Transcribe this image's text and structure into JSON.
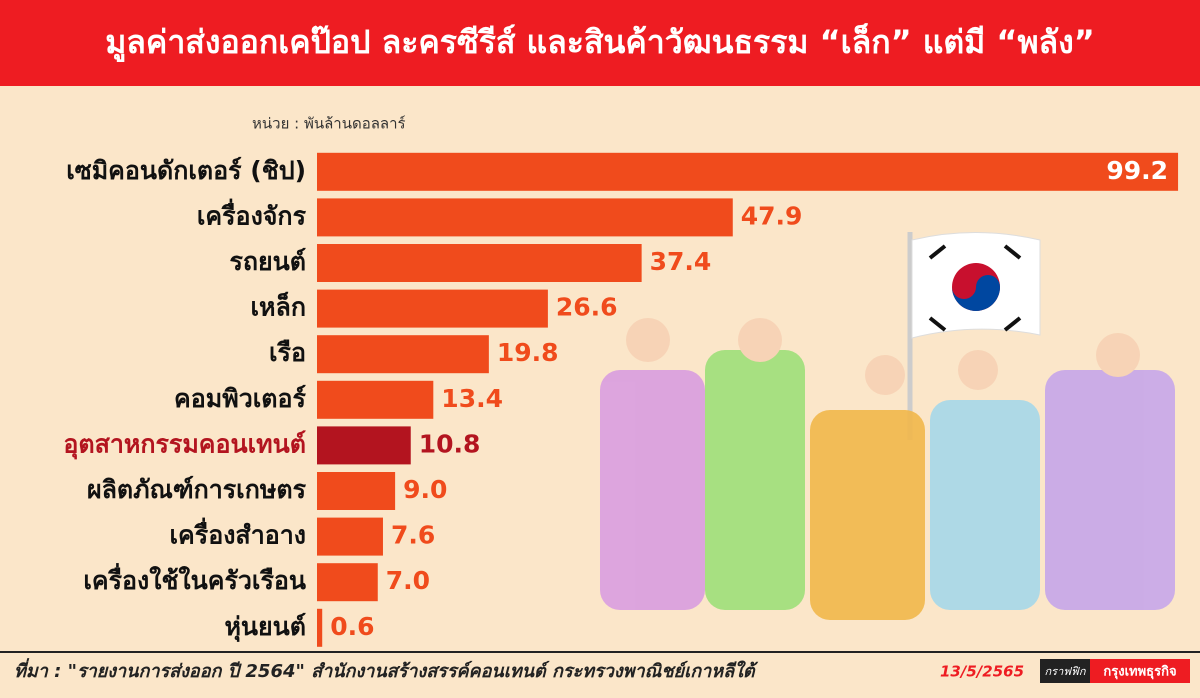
{
  "chart_data": {
    "type": "hbar",
    "title": "มูลค่าส่งออกเคป๊อป ละครซีรีส์ และสินค้าวัฒนธรรม “เล็ก” แต่มี “พลัง”",
    "unit": "หน่วย : พันล้านดอลลาร์",
    "categories": [
      "เซมิคอนดักเตอร์ (ชิป)",
      "เครื่องจักร",
      "รถยนต์",
      "เหล็ก",
      "เรือ",
      "คอมพิวเตอร์",
      "อุตสาหกรรมคอนเทนต์",
      "ผลิตภัณฑ์การเกษตร",
      "เครื่องสำอาง",
      "เครื่องใช้ในครัวเรือน",
      "หุ่นยนต์"
    ],
    "values": [
      99.2,
      47.9,
      37.4,
      26.6,
      19.8,
      13.4,
      10.8,
      9.0,
      7.6,
      7.0,
      0.6
    ],
    "value_labels": [
      "99.2",
      "47.9",
      "37.4",
      "26.6",
      "19.8",
      "13.4",
      "10.8",
      "9.0",
      "7.6",
      "7.0",
      "0.6"
    ],
    "colors": [
      "#f04b1c",
      "#f04b1c",
      "#f04b1c",
      "#f04b1c",
      "#f04b1c",
      "#f04b1c",
      "#b3141f",
      "#f04b1c",
      "#f04b1c",
      "#f04b1c",
      "#f04b1c"
    ],
    "xlim": [
      0,
      100
    ],
    "source": "ที่มา : \"รายงานการส่งออก ปี 2564\" สำนักงานสร้างสรรค์คอนเทนต์ กระทรวงพาณิชย์เกาหลีใต้",
    "date": "13/5/2565",
    "brand": [
      "กราฟฟิก",
      "กรุงเทพธุรกิจ"
    ]
  }
}
